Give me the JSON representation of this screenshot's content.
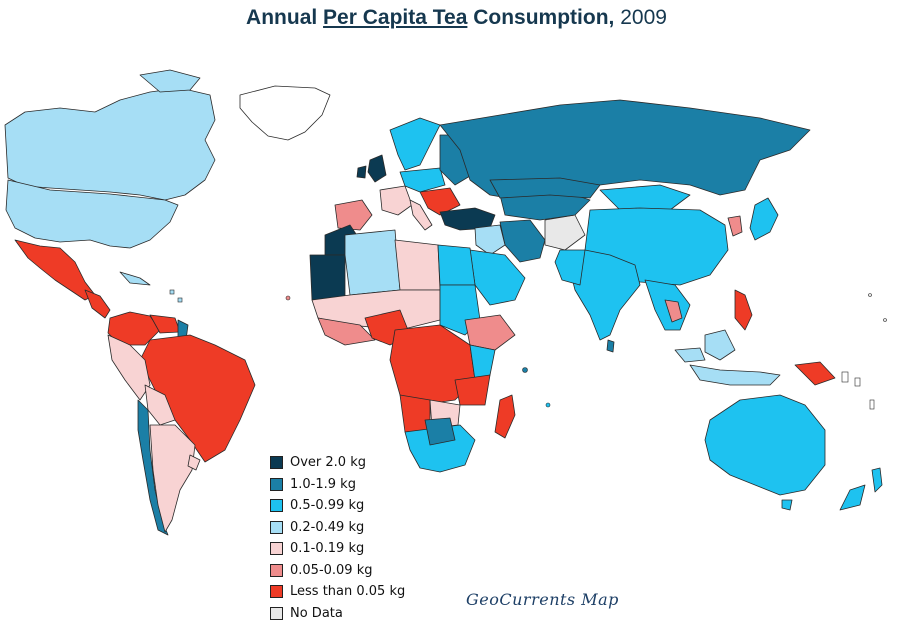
{
  "title": {
    "part1": "Annual ",
    "link": "Per Capita Tea",
    "part2": " Consumption,",
    "year": " 2009"
  },
  "legend": [
    {
      "label": "Over 2.0 kg",
      "color": "#0b3a52"
    },
    {
      "label": "1.0-1.9 kg",
      "color": "#1b7fa6"
    },
    {
      "label": "0.5-0.99 kg",
      "color": "#1ec2f0"
    },
    {
      "label": "0.2-0.49 kg",
      "color": "#a6def5"
    },
    {
      "label": "0.1-0.19 kg",
      "color": "#f8d3d3"
    },
    {
      "label": "0.05-0.09 kg",
      "color": "#ef8c8c"
    },
    {
      "label": "Less than 0.05 kg",
      "color": "#ee3b26"
    },
    {
      "label": "No Data",
      "color": "#e8e8e8"
    }
  ],
  "credit": "GeoCurrents Map"
}
